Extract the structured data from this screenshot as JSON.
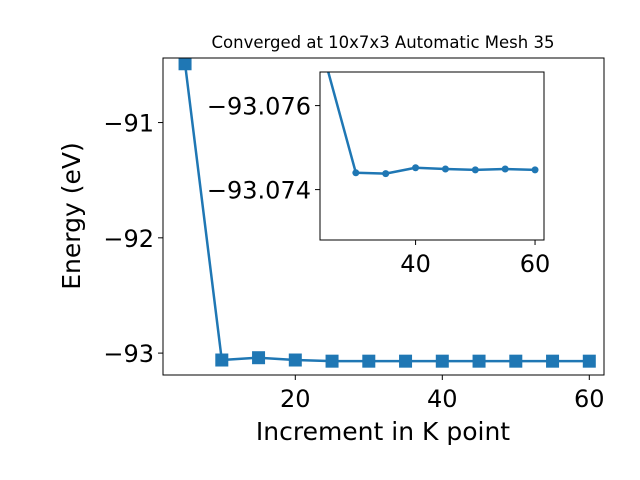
{
  "chart_data": [
    {
      "type": "line",
      "title": "Converged at 10x7x3 Automatic Mesh 35",
      "xlabel": "Increment in K point",
      "ylabel": "Energy (eV)",
      "xlim": [
        2,
        62
      ],
      "ylim": [
        -93.19,
        -90.44
      ],
      "xticks": [
        20,
        40,
        60
      ],
      "yticks": [
        -93,
        -92,
        -91
      ],
      "grid": false,
      "series": [
        {
          "marker": "square",
          "color": "#1f77b4",
          "x": [
            5,
            10,
            15,
            20,
            25,
            30,
            35,
            40,
            45,
            50,
            55,
            60
          ],
          "y": [
            -90.49,
            -93.06,
            -93.04,
            -93.06,
            -93.07,
            -93.07,
            -93.07,
            -93.07,
            -93.07,
            -93.07,
            -93.07,
            -93.07
          ]
        }
      ]
    },
    {
      "type": "line",
      "title": "",
      "xlabel": "",
      "ylabel": "",
      "xlim": [
        24,
        61.5
      ],
      "ylim": [
        -93.0728,
        -93.0768
      ],
      "xticks": [
        40,
        60
      ],
      "yticks": [
        -93.076,
        -93.074
      ],
      "grid": false,
      "series": [
        {
          "marker": "circle",
          "color": "#1f77b4",
          "x": [
            25,
            30,
            35,
            40,
            45,
            50,
            55,
            60
          ],
          "y": [
            -93.077,
            -93.0744,
            -93.07438,
            -93.07452,
            -93.07449,
            -93.07447,
            -93.07449,
            -93.07447
          ]
        }
      ]
    }
  ]
}
